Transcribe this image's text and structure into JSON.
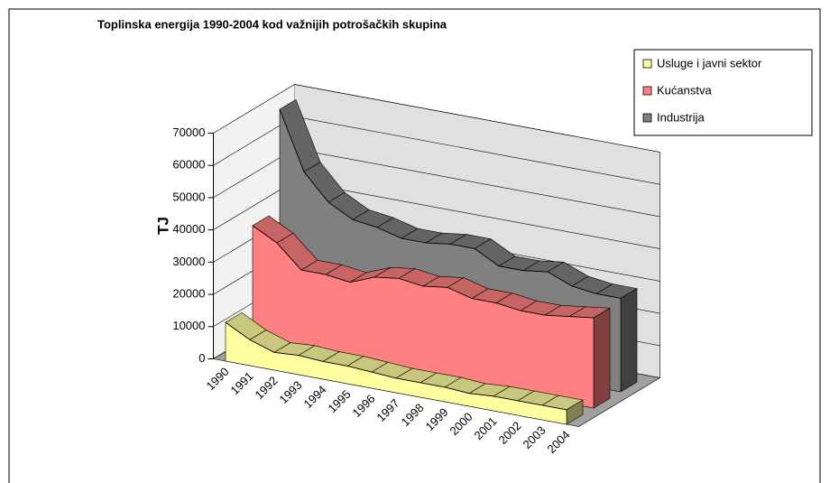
{
  "chart_data": {
    "type": "area3d",
    "title": "Toplinska energija 1990-2004 kod važnijih potrošačkih skupina",
    "ylabel": "TJ",
    "categories": [
      "1990",
      "1991",
      "1992",
      "1993",
      "1994",
      "1995",
      "1996",
      "1997",
      "1998",
      "1999",
      "2000",
      "2001",
      "2002",
      "2003",
      "2004"
    ],
    "series": [
      {
        "name": "Usluge i javni sektor",
        "color": "#ffffa0",
        "values": [
          12000,
          8000,
          5500,
          6000,
          5500,
          5500,
          5000,
          4500,
          4500,
          4500,
          4000,
          4500,
          4500,
          4500,
          4500
        ]
      },
      {
        "name": "Kućanstva",
        "color": "#ff8080",
        "values": [
          37000,
          33000,
          26000,
          26000,
          25000,
          28000,
          29000,
          28000,
          29000,
          27000,
          27000,
          26000,
          26000,
          27000,
          28000
        ]
      },
      {
        "name": "Industrija",
        "color": "#808080",
        "values": [
          68000,
          50000,
          42000,
          38000,
          37000,
          35000,
          35000,
          36000,
          36000,
          32000,
          32000,
          33000,
          30000,
          29000,
          29000
        ]
      }
    ],
    "ylim": [
      0,
      70000
    ],
    "yticks": [
      0,
      10000,
      20000,
      30000,
      40000,
      50000,
      60000,
      70000
    ],
    "grid": true,
    "legend": "top-right"
  }
}
